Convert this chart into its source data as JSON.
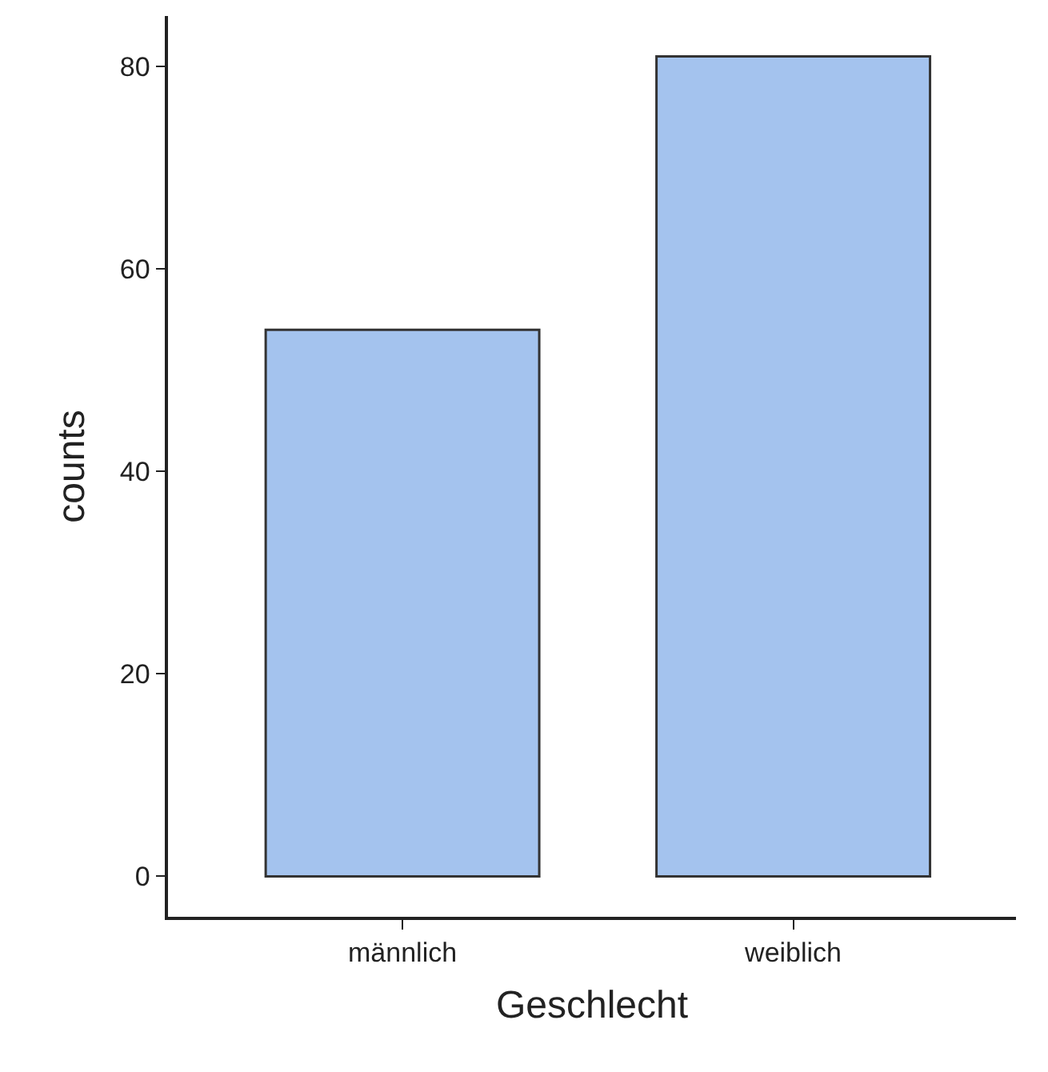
{
  "chart_data": {
    "type": "bar",
    "xlabel": "Geschlecht",
    "ylabel": "counts",
    "categories": [
      "männlich",
      "weiblich"
    ],
    "values": [
      54,
      81
    ],
    "color": "#a4c3ee",
    "ylim": [
      -4,
      85
    ],
    "yticks": [
      0,
      20,
      40,
      60,
      80
    ]
  }
}
